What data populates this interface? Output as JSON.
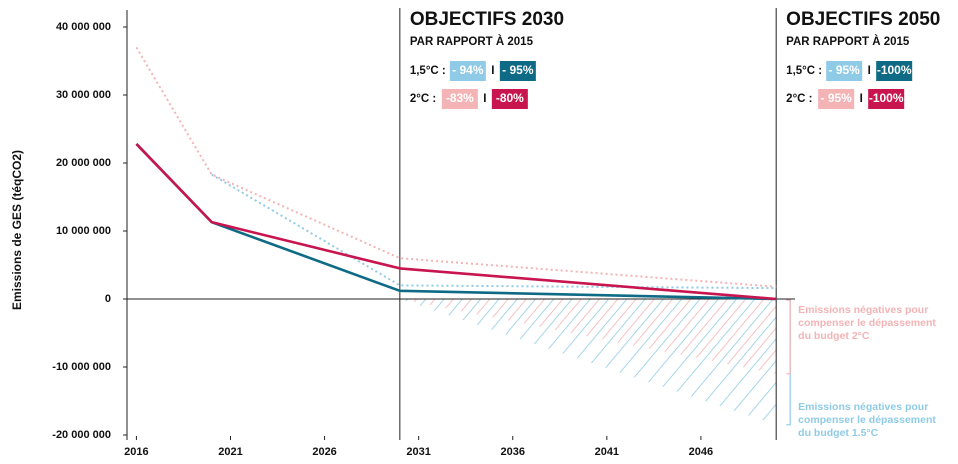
{
  "chart_data": {
    "type": "line",
    "y_label": "Emissions de GES (téqCO2)",
    "xlim": [
      2015.5,
      2051
    ],
    "ylim": [
      -20000000,
      40000000
    ],
    "xticks": [
      2016,
      2021,
      2026,
      2031,
      2036,
      2041,
      2046
    ],
    "yticks": [
      {
        "value": -20000000,
        "label": "-20 000 000"
      },
      {
        "value": -10000000,
        "label": "-10 000 000"
      },
      {
        "value": 0,
        "label": "0"
      },
      {
        "value": 10000000,
        "label": "10 000 000"
      },
      {
        "value": 20000000,
        "label": "20 000 000"
      },
      {
        "value": 30000000,
        "label": "30 000 000"
      },
      {
        "value": 40000000,
        "label": "40 000 000"
      }
    ],
    "x": [
      2016,
      2020,
      2030,
      2050
    ],
    "series": [
      {
        "color": "#f4b3b5",
        "dotted": true,
        "values": [
          37000000,
          18300000,
          6000000,
          1800000
        ]
      },
      {
        "color": "#8fcbe6",
        "dotted": true,
        "values": [
          null,
          18300000,
          2000000,
          1600000
        ]
      },
      {
        "color": "#0e6a85",
        "dotted": false,
        "values": [
          22800000,
          11300000,
          1200000,
          0
        ]
      },
      {
        "color": "#c8154f",
        "dotted": false,
        "values": [
          22800000,
          11300000,
          4500000,
          0
        ]
      }
    ],
    "reference_lines": [
      2030,
      2050
    ],
    "negative_areas": [
      {
        "color": "#8fcbe6",
        "x": [
          2030,
          2050
        ],
        "values": [
          0,
          -18500000
        ],
        "label": [
          "Emissions négatives pour",
          "compenser le dépassement",
          "du budget 1.5°C"
        ]
      },
      {
        "color": "#f4b3b5",
        "x": [
          2030,
          2050
        ],
        "values": [
          0,
          -11000000
        ],
        "label": [
          "Emissions négatives pour",
          "compenser le dépassement",
          "du budget 2°C"
        ]
      }
    ],
    "objectives": [
      {
        "title": "OBJECTIFS 2030",
        "subtitle": "PAR RAPPORT À 2015",
        "rows": [
          {
            "label": "1,5°C :",
            "separator": "I",
            "badges": [
              {
                "text": "- 94%",
                "color": "#8fcbe6"
              },
              {
                "text": "- 95%",
                "color": "#0e6a85"
              }
            ]
          },
          {
            "label": "2°C :",
            "separator": "I",
            "badges": [
              {
                "text": "-83%",
                "color": "#f4b3b5"
              },
              {
                "text": "-80%",
                "color": "#c8154f"
              }
            ]
          }
        ]
      },
      {
        "title": "OBJECTIFS 2050",
        "subtitle": "PAR RAPPORT À 2015",
        "rows": [
          {
            "label": "1,5°C :",
            "separator": "I",
            "badges": [
              {
                "text": "- 95%",
                "color": "#8fcbe6"
              },
              {
                "text": "-100%",
                "color": "#0e6a85"
              }
            ]
          },
          {
            "label": "2°C :",
            "separator": "I",
            "badges": [
              {
                "text": "- 95%",
                "color": "#f4b3b5"
              },
              {
                "text": "-100%",
                "color": "#c8154f"
              }
            ]
          }
        ]
      }
    ]
  }
}
